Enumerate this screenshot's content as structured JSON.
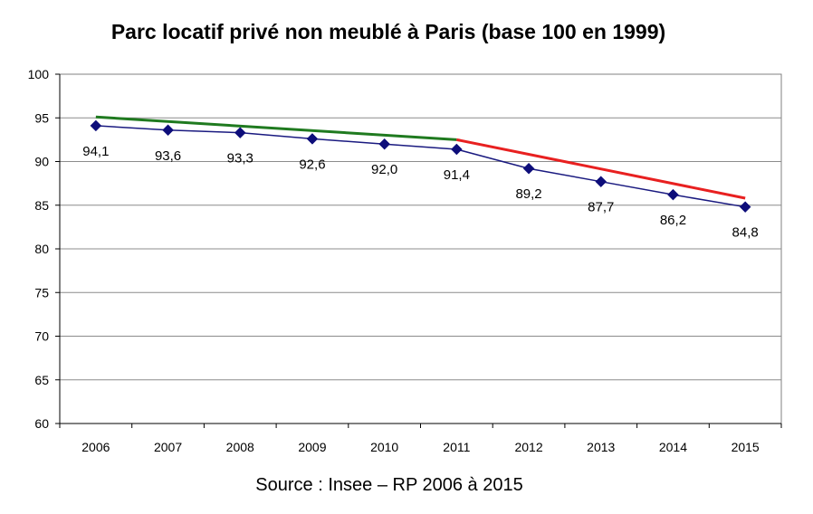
{
  "chart_data": {
    "type": "line",
    "title": "Parc locatif privé non meublé à Paris (base 100 en 1999)",
    "source": "Source : Insee – RP 2006 à 2015",
    "categories": [
      "2006",
      "2007",
      "2008",
      "2009",
      "2010",
      "2011",
      "2012",
      "2013",
      "2014",
      "2015"
    ],
    "ylim": [
      60,
      100
    ],
    "yticks": [
      60,
      65,
      70,
      75,
      80,
      85,
      90,
      95,
      100
    ],
    "grid": true,
    "series": [
      {
        "name": "Parc locatif privé non meublé",
        "values": [
          94.1,
          93.6,
          93.3,
          92.6,
          92.0,
          91.4,
          89.2,
          87.7,
          86.2,
          84.8
        ],
        "labels": [
          "94,1",
          "93,6",
          "93,3",
          "92,6",
          "92,0",
          "91,4",
          "89,2",
          "87,7",
          "86,2",
          "84,8"
        ],
        "color": "#1a1a80",
        "marker": "diamond",
        "marker_color": "#0d0d7a"
      }
    ],
    "trend_lines": [
      {
        "name": "tendance 2006-2011",
        "x": [
          "2006",
          "2011"
        ],
        "values": [
          95.1,
          92.5
        ],
        "color": "#1f7a1f"
      },
      {
        "name": "tendance 2011-2015",
        "x": [
          "2011",
          "2015"
        ],
        "values": [
          92.5,
          85.8
        ],
        "color": "#e82020"
      }
    ]
  }
}
